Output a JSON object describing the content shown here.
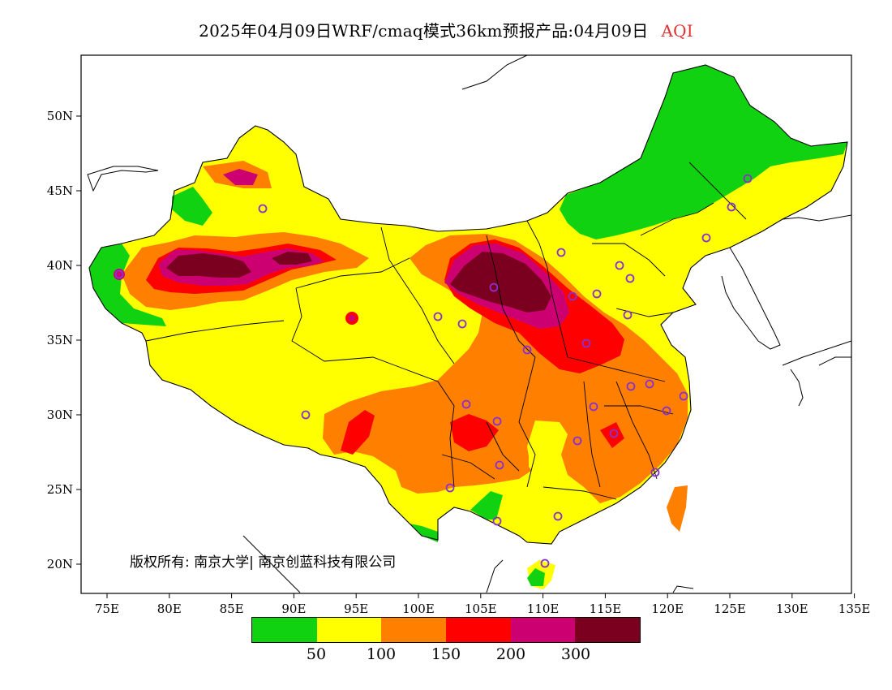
{
  "header": {
    "title": "2025年04月09日WRF/cmaq模式36km预报产品:04月09日",
    "variable": "AQI"
  },
  "map": {
    "lat_ticks": [
      "50N",
      "45N",
      "40N",
      "35N",
      "30N",
      "25N",
      "20N"
    ],
    "lon_ticks": [
      "75E",
      "80E",
      "85E",
      "90E",
      "95E",
      "100E",
      "105E",
      "110E",
      "115E",
      "120E",
      "125E",
      "130E",
      "135E"
    ],
    "copyright": "版权所有: 南京大学| 南京创蓝科技有限公司",
    "colors": {
      "good": "#11d211",
      "moderate": "#ffff00",
      "sensitive": "#ff8000",
      "unhealthy": "#ff0000",
      "very_unhealthy": "#cc0070",
      "hazardous": "#7b0020",
      "marker": "#8c2fcf"
    }
  },
  "legend": {
    "colors": [
      "#11d211",
      "#ffff00",
      "#ff8000",
      "#ff0000",
      "#cc0070",
      "#7b0020"
    ],
    "labels": [
      "50",
      "100",
      "150",
      "200",
      "300"
    ]
  }
}
